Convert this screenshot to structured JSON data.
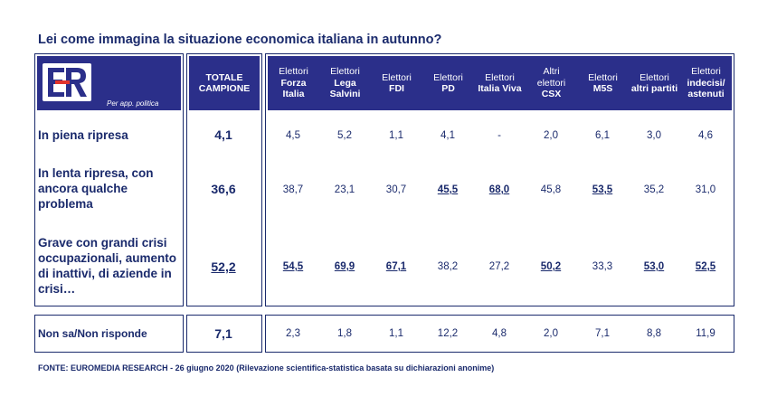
{
  "title": "Lei come immagina la situazione economica italiana in autunno?",
  "logo": {
    "letters": "ER",
    "caption": "Per app. politica"
  },
  "source": "FONTE: EUROMEDIA RESEARCH - 26 giugno 2020 (Rilevazione scientifica-statistica basata su dichiarazioni anonime)",
  "colors": {
    "navy": "#1a2a6c",
    "header": "#2b2f8a",
    "logo_red": "#e2342d"
  },
  "chart_data": {
    "type": "table",
    "total_header": [
      "TOTALE",
      "CAMPIONE"
    ],
    "columns": [
      {
        "l1": "Elettori",
        "l2": "Forza",
        "l3": "Italia"
      },
      {
        "l1": "Elettori",
        "l2": "Lega",
        "l3": "Salvini"
      },
      {
        "l1": "Elettori",
        "l2": "FDI",
        "l3": ""
      },
      {
        "l1": "Elettori",
        "l2": "PD",
        "l3": ""
      },
      {
        "l1": "Elettori",
        "l2": "Italia Viva",
        "l3": ""
      },
      {
        "l1": "Altri",
        "l2": "elettori",
        "l3": "CSX"
      },
      {
        "l1": "Elettori",
        "l2": "M5S",
        "l3": ""
      },
      {
        "l1": "Elettori",
        "l2": "altri partiti",
        "l3": ""
      },
      {
        "l1": "Elettori",
        "l2": "indecisi/",
        "l3": "astenuti"
      }
    ],
    "rows": [
      {
        "label": "In piena ripresa",
        "total": "4,1",
        "total_hl": false,
        "values": [
          "4,5",
          "5,2",
          "1,1",
          "4,1",
          "-",
          "2,0",
          "6,1",
          "3,0",
          "4,6"
        ],
        "highlight": [
          false,
          false,
          false,
          false,
          false,
          false,
          false,
          false,
          false
        ]
      },
      {
        "label": "In lenta ripresa, con ancora qualche problema",
        "total": "36,6",
        "total_hl": false,
        "values": [
          "38,7",
          "23,1",
          "30,7",
          "45,5",
          "68,0",
          "45,8",
          "53,5",
          "35,2",
          "31,0"
        ],
        "highlight": [
          false,
          false,
          false,
          true,
          true,
          false,
          true,
          false,
          false
        ]
      },
      {
        "label": "Grave con grandi crisi occupazionali, aumento di inattivi, di aziende in crisi…",
        "total": "52,2",
        "total_hl": true,
        "values": [
          "54,5",
          "69,9",
          "67,1",
          "38,2",
          "27,2",
          "50,2",
          "33,3",
          "53,0",
          "52,5"
        ],
        "highlight": [
          true,
          true,
          true,
          false,
          false,
          true,
          false,
          true,
          true
        ]
      },
      {
        "label": "Non sa/Non risponde",
        "total": "7,1",
        "total_hl": false,
        "values": [
          "2,3",
          "1,8",
          "1,1",
          "12,2",
          "4,8",
          "2,0",
          "7,1",
          "8,8",
          "11,9"
        ],
        "highlight": [
          false,
          false,
          false,
          false,
          false,
          false,
          false,
          false,
          false
        ]
      }
    ]
  }
}
